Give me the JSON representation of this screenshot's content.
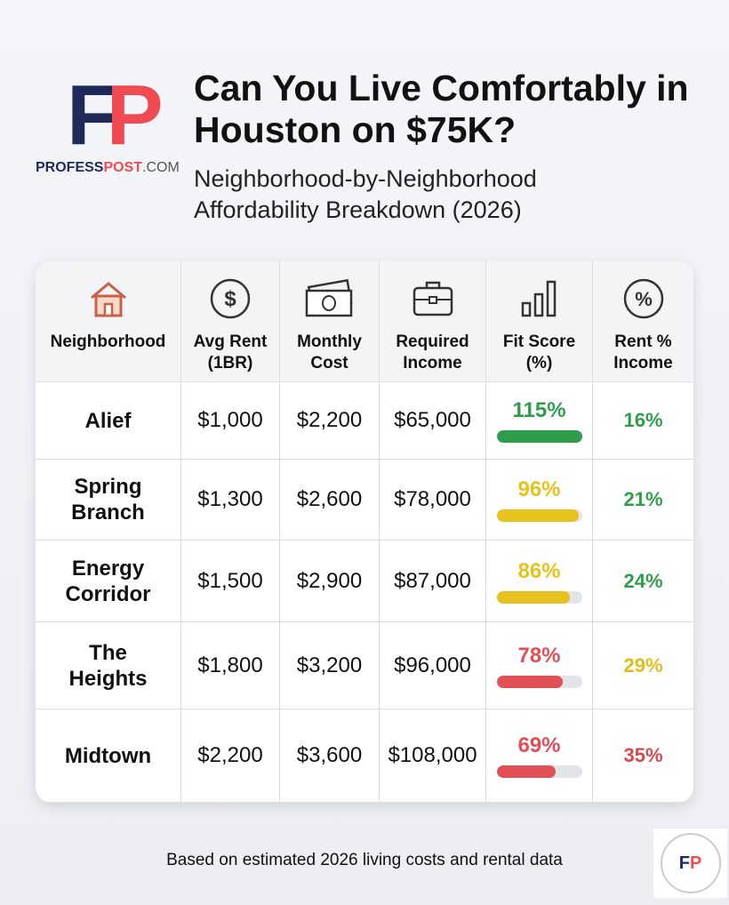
{
  "header": {
    "logo": [
      "F",
      "P"
    ],
    "brand": [
      "PROFESS",
      "POST",
      ".COM"
    ],
    "title": "Can You Live Comfortably in Houston on $75K?",
    "subtitle": "Neighborhood-by-Neighborhood Affordability Breakdown (2026)"
  },
  "table": {
    "columns": [
      "Neighborhood",
      "Avg Rent (1BR)",
      "Monthly Cost",
      "Required Income",
      "Fit Score (%)",
      "Rent % Income"
    ],
    "rows": [
      {
        "neighborhood": "Alief",
        "avg_rent": "$1,000",
        "monthly_cost": "$2,200",
        "required_income": "$65,000",
        "fit_score": 115,
        "fit_label": "115%",
        "fit_color": "#2f9e4b",
        "rent_pct": "16%",
        "rent_color": "#2f9e4b"
      },
      {
        "neighborhood": "Spring Branch",
        "avg_rent": "$1,300",
        "monthly_cost": "$2,600",
        "required_income": "$78,000",
        "fit_score": 96,
        "fit_label": "96%",
        "fit_color": "#e8c21c",
        "rent_pct": "21%",
        "rent_color": "#2f9e4b"
      },
      {
        "neighborhood": "Energy Corridor",
        "avg_rent": "$1,500",
        "monthly_cost": "$2,900",
        "required_income": "$87,000",
        "fit_score": 86,
        "fit_label": "86%",
        "fit_color": "#e8c21c",
        "rent_pct": "24%",
        "rent_color": "#2f9e4b"
      },
      {
        "neighborhood": "The Heights",
        "avg_rent": "$1,800",
        "monthly_cost": "$3,200",
        "required_income": "$96,000",
        "fit_score": 78,
        "fit_label": "78%",
        "fit_color": "#e05055",
        "rent_pct": "29%",
        "rent_color": "#e0bd1a"
      },
      {
        "neighborhood": "Midtown",
        "avg_rent": "$2,200",
        "monthly_cost": "$3,600",
        "required_income": "$108,000",
        "fit_score": 69,
        "fit_label": "69%",
        "fit_color": "#e05055",
        "rent_pct": "35%",
        "rent_color": "#d9474c"
      }
    ]
  },
  "footer": {
    "note": "Based on estimated 2026 living costs and rental data",
    "badge": [
      "F",
      "P"
    ]
  }
}
